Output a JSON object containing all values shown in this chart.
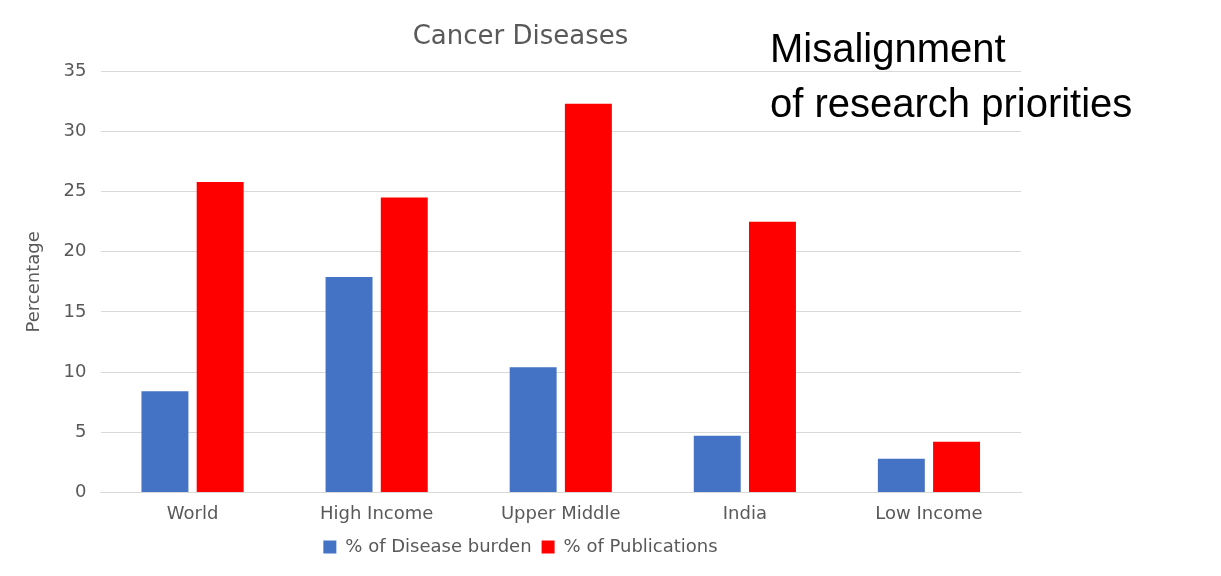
{
  "chart_data": {
    "type": "bar",
    "title": "Cancer Diseases",
    "ylabel": "Percentage",
    "categories": [
      "World",
      "High Income",
      "Upper Middle",
      "India",
      "Low Income"
    ],
    "series": [
      {
        "name": "% of Disease burden",
        "color": "#4472c4",
        "values": [
          8.4,
          17.9,
          10.4,
          4.7,
          2.8
        ]
      },
      {
        "name": "% of Publications",
        "color": "#ff0000",
        "values": [
          25.8,
          24.5,
          32.3,
          22.5,
          4.2
        ]
      }
    ],
    "ylim": [
      0,
      35
    ],
    "yticks": [
      0,
      5,
      10,
      15,
      20,
      25,
      30,
      35
    ],
    "grid": "y",
    "legend": "bottom",
    "annotations": [
      "Misalignment\nof research priorities"
    ]
  }
}
